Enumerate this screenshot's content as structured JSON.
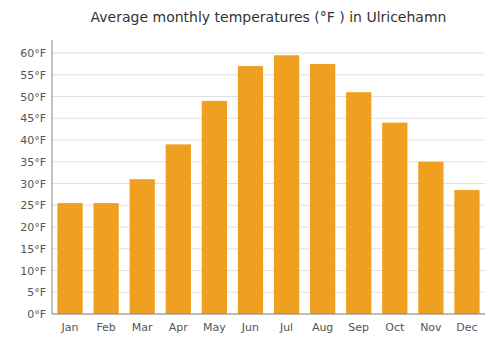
{
  "chart_data": {
    "type": "bar",
    "title": "Average monthly temperatures (°F ) in Ulricehamn",
    "categories": [
      "Jan",
      "Feb",
      "Mar",
      "Apr",
      "May",
      "Jun",
      "Jul",
      "Aug",
      "Sep",
      "Oct",
      "Nov",
      "Dec"
    ],
    "values": [
      25.5,
      25.5,
      31.0,
      39.0,
      49.0,
      57.0,
      59.5,
      57.5,
      51.0,
      44.0,
      35.0,
      28.5
    ],
    "color": "#F0A020",
    "ylim": [
      0,
      63
    ],
    "yticks": [
      {
        "value": 0,
        "label": "0°F"
      },
      {
        "value": 5,
        "label": "5°F"
      },
      {
        "value": 10,
        "label": "10°F"
      },
      {
        "value": 15,
        "label": "15°F"
      },
      {
        "value": 20,
        "label": "20°F"
      },
      {
        "value": 25,
        "label": "25°F"
      },
      {
        "value": 30,
        "label": "30°F"
      },
      {
        "value": 35,
        "label": "35°F"
      },
      {
        "value": 40,
        "label": "40°F"
      },
      {
        "value": 45,
        "label": "45°F"
      },
      {
        "value": 50,
        "label": "50°F"
      },
      {
        "value": 55,
        "label": "55°F"
      },
      {
        "value": 60,
        "label": "60°F"
      }
    ],
    "grid": true
  }
}
